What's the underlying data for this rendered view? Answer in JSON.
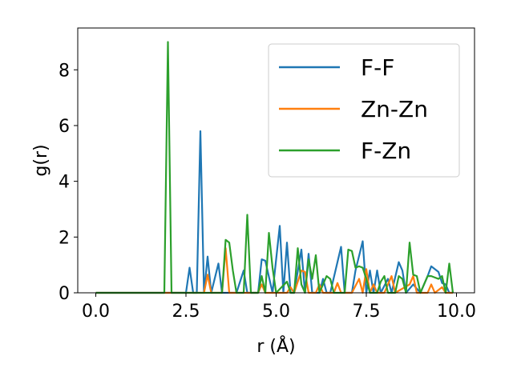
{
  "chart_data": {
    "type": "line",
    "xlabel": "r (Å)",
    "ylabel": "g(r)",
    "xlim": [
      -0.5,
      10.5
    ],
    "ylim": [
      0,
      9.5
    ],
    "xticks": [
      "0.0",
      "2.5",
      "5.0",
      "7.5",
      "10.0"
    ],
    "yticks": [
      "0",
      "2",
      "4",
      "6",
      "8"
    ],
    "grid": false,
    "legend_position": "top-right",
    "series": [
      {
        "name": "F-F",
        "color": "#1f77b4",
        "points": [
          [
            0.0,
            0
          ],
          [
            1.9,
            0
          ],
          [
            2.5,
            0
          ],
          [
            2.6,
            0.9
          ],
          [
            2.7,
            0
          ],
          [
            2.8,
            0
          ],
          [
            2.9,
            5.8
          ],
          [
            3.0,
            0
          ],
          [
            3.1,
            1.3
          ],
          [
            3.2,
            0
          ],
          [
            3.4,
            1.05
          ],
          [
            3.5,
            0
          ],
          [
            3.9,
            0
          ],
          [
            4.1,
            0.8
          ],
          [
            4.2,
            0
          ],
          [
            4.5,
            0
          ],
          [
            4.6,
            1.2
          ],
          [
            4.7,
            1.15
          ],
          [
            4.9,
            0
          ],
          [
            5.1,
            2.4
          ],
          [
            5.2,
            0
          ],
          [
            5.3,
            1.8
          ],
          [
            5.4,
            0
          ],
          [
            5.5,
            0
          ],
          [
            5.7,
            1.55
          ],
          [
            5.8,
            0
          ],
          [
            5.9,
            1.4
          ],
          [
            6.0,
            0
          ],
          [
            6.2,
            0
          ],
          [
            6.3,
            0.5
          ],
          [
            6.4,
            0
          ],
          [
            6.5,
            0
          ],
          [
            6.8,
            1.65
          ],
          [
            6.9,
            0
          ],
          [
            7.1,
            0
          ],
          [
            7.2,
            0.8
          ],
          [
            7.4,
            1.85
          ],
          [
            7.5,
            0
          ],
          [
            7.6,
            0.8
          ],
          [
            7.7,
            0
          ],
          [
            7.8,
            0.8
          ],
          [
            7.9,
            0
          ],
          [
            8.1,
            0.5
          ],
          [
            8.2,
            0
          ],
          [
            8.4,
            1.1
          ],
          [
            8.5,
            0.8
          ],
          [
            8.6,
            0
          ],
          [
            8.8,
            0.3
          ],
          [
            9.0,
            0
          ],
          [
            9.2,
            0.6
          ],
          [
            9.3,
            0.95
          ],
          [
            9.5,
            0.75
          ],
          [
            9.6,
            0.35
          ],
          [
            9.7,
            0.3
          ],
          [
            9.8,
            0
          ],
          [
            9.9,
            0
          ]
        ]
      },
      {
        "name": "Zn-Zn",
        "color": "#ff7f0e",
        "points": [
          [
            0.0,
            0
          ],
          [
            3.0,
            0
          ],
          [
            3.1,
            0.65
          ],
          [
            3.2,
            0
          ],
          [
            3.5,
            0
          ],
          [
            3.6,
            1.6
          ],
          [
            3.7,
            0
          ],
          [
            4.5,
            0
          ],
          [
            4.6,
            0.3
          ],
          [
            4.7,
            0
          ],
          [
            5.3,
            0
          ],
          [
            5.4,
            0.2
          ],
          [
            5.5,
            0
          ],
          [
            5.7,
            0.8
          ],
          [
            5.8,
            0.75
          ],
          [
            5.9,
            0
          ],
          [
            6.1,
            0
          ],
          [
            6.2,
            0.3
          ],
          [
            6.3,
            0
          ],
          [
            6.6,
            0
          ],
          [
            6.7,
            0.35
          ],
          [
            6.8,
            0
          ],
          [
            7.1,
            0
          ],
          [
            7.3,
            0.5
          ],
          [
            7.4,
            0
          ],
          [
            7.5,
            0.85
          ],
          [
            7.6,
            0
          ],
          [
            7.7,
            0.3
          ],
          [
            7.8,
            0
          ],
          [
            8.0,
            0
          ],
          [
            8.2,
            0.6
          ],
          [
            8.3,
            0
          ],
          [
            8.7,
            0.3
          ],
          [
            8.8,
            0.6
          ],
          [
            8.9,
            0
          ],
          [
            9.2,
            0
          ],
          [
            9.3,
            0.3
          ],
          [
            9.4,
            0
          ],
          [
            9.6,
            0.2
          ],
          [
            9.7,
            0
          ],
          [
            9.9,
            0
          ]
        ]
      },
      {
        "name": "F-Zn",
        "color": "#2ca02c",
        "points": [
          [
            0.0,
            0
          ],
          [
            1.9,
            0
          ],
          [
            2.0,
            9.0
          ],
          [
            2.1,
            0
          ],
          [
            3.5,
            0
          ],
          [
            3.6,
            1.9
          ],
          [
            3.7,
            1.8
          ],
          [
            3.8,
            0.8
          ],
          [
            3.9,
            0
          ],
          [
            4.1,
            0
          ],
          [
            4.2,
            2.8
          ],
          [
            4.3,
            0
          ],
          [
            4.5,
            0
          ],
          [
            4.6,
            0.6
          ],
          [
            4.7,
            0
          ],
          [
            4.8,
            2.15
          ],
          [
            4.9,
            0.9
          ],
          [
            5.0,
            0
          ],
          [
            5.3,
            0.4
          ],
          [
            5.4,
            0
          ],
          [
            5.5,
            0
          ],
          [
            5.6,
            1.6
          ],
          [
            5.7,
            0.3
          ],
          [
            5.8,
            0
          ],
          [
            5.9,
            1.2
          ],
          [
            6.0,
            0.5
          ],
          [
            6.1,
            1.35
          ],
          [
            6.2,
            0
          ],
          [
            6.4,
            0.6
          ],
          [
            6.5,
            0.5
          ],
          [
            6.6,
            0
          ],
          [
            6.9,
            0
          ],
          [
            7.0,
            1.55
          ],
          [
            7.1,
            1.5
          ],
          [
            7.2,
            0.9
          ],
          [
            7.3,
            0.95
          ],
          [
            7.4,
            0.9
          ],
          [
            7.5,
            0.5
          ],
          [
            7.6,
            0
          ],
          [
            7.8,
            0
          ],
          [
            7.9,
            0.4
          ],
          [
            8.0,
            0.6
          ],
          [
            8.1,
            0
          ],
          [
            8.3,
            0
          ],
          [
            8.4,
            0.6
          ],
          [
            8.5,
            0.5
          ],
          [
            8.6,
            0
          ],
          [
            8.7,
            1.8
          ],
          [
            8.8,
            0.65
          ],
          [
            8.9,
            0.6
          ],
          [
            9.0,
            0
          ],
          [
            9.2,
            0.6
          ],
          [
            9.3,
            0.6
          ],
          [
            9.4,
            0.55
          ],
          [
            9.5,
            0.5
          ],
          [
            9.6,
            0.6
          ],
          [
            9.7,
            0
          ],
          [
            9.8,
            1.05
          ],
          [
            9.9,
            0
          ]
        ]
      }
    ]
  }
}
